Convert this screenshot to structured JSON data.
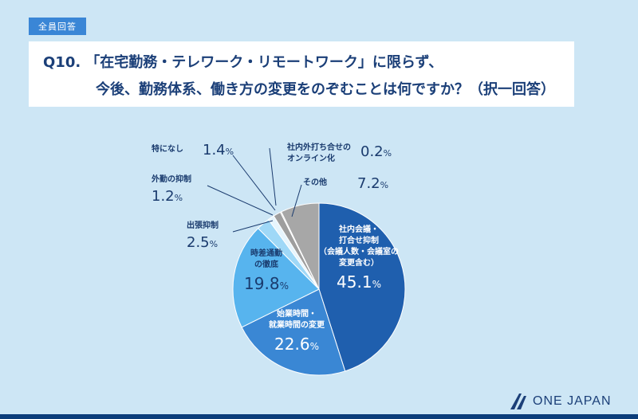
{
  "tag": "全員回答",
  "question": {
    "number": "Q10.",
    "line1": "「在宅勤務・テレワーク・リモートワーク」に限らず、",
    "line2": "今後、勤務体系、働き方の変更をのぞむことは何ですか？（択一回答）"
  },
  "logo": "ONE JAPAN",
  "chart_data": {
    "type": "pie",
    "unit": "%",
    "slices": [
      {
        "label": [
          "社内会議・",
          "打合せ抑制",
          "（会議人数・会議室の",
          "変更含む）"
        ],
        "value": 45.1,
        "color": "#1f5fae"
      },
      {
        "label": [
          "始業時間・",
          "就業時間の変更"
        ],
        "value": 22.6,
        "color": "#3a87d4"
      },
      {
        "label": [
          "時差通勤",
          "の徹底"
        ],
        "value": 19.8,
        "color": "#57b4ee"
      },
      {
        "label": [
          "出張抑制"
        ],
        "value": 2.5,
        "color": "#9fd8f7"
      },
      {
        "label": [
          "外勤の抑制"
        ],
        "value": 1.2,
        "color": "#e7f5fd"
      },
      {
        "label": [
          "特になし"
        ],
        "value": 1.4,
        "color": "#9e9e9e"
      },
      {
        "label": [
          "社内外打ち合せの",
          "オンライン化"
        ],
        "value": 0.2,
        "color": "#c0c0c0"
      },
      {
        "label": [
          "その他"
        ],
        "value": 7.2,
        "color": "#a7a7a7"
      }
    ]
  }
}
